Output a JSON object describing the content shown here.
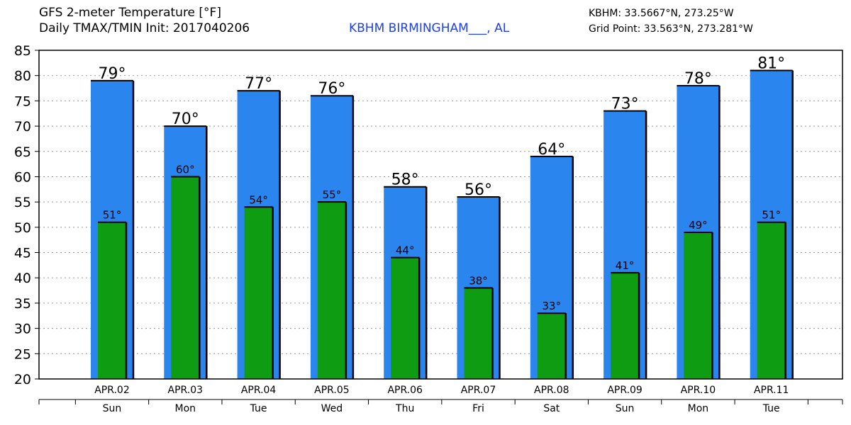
{
  "header": {
    "title_line1": "GFS 2-meter Temperature [°F]",
    "title_line2": "Daily TMAX/TMIN Init: 2017040206",
    "station": "KBHM BIRMINGHAM___, AL",
    "coord_station": "KBHM: 33.5667°N, 273.25°W",
    "coord_grid": "Grid Point: 33.563°N, 273.281°W"
  },
  "colors": {
    "tmax": "#2b85ef",
    "tmin": "#0e9c12",
    "station_text": "#1f3ff2",
    "bar_border": "#000000",
    "grid": "#999999"
  },
  "chart_data": {
    "type": "bar",
    "title": "GFS 2-meter Temperature [°F]",
    "categories": [
      "APR.02",
      "APR.03",
      "APR.04",
      "APR.05",
      "APR.06",
      "APR.07",
      "APR.08",
      "APR.09",
      "APR.10",
      "APR.11"
    ],
    "weekdays": [
      "Sun",
      "Mon",
      "Tue",
      "Wed",
      "Thu",
      "Fri",
      "Sat",
      "Sun",
      "Mon",
      "Tue"
    ],
    "series": [
      {
        "name": "TMAX",
        "values": [
          79,
          70,
          77,
          76,
          58,
          56,
          64,
          73,
          78,
          81
        ],
        "labels": [
          "79°",
          "70°",
          "77°",
          "76°",
          "58°",
          "56°",
          "64°",
          "73°",
          "78°",
          "81°"
        ]
      },
      {
        "name": "TMIN",
        "values": [
          51,
          60,
          54,
          55,
          44,
          38,
          33,
          41,
          49,
          51
        ],
        "labels": [
          "51°",
          "60°",
          "54°",
          "55°",
          "44°",
          "38°",
          "33°",
          "41°",
          "49°",
          "51°"
        ]
      }
    ],
    "ylim": [
      20,
      85
    ],
    "yticks": [
      "20",
      "25",
      "30",
      "35",
      "40",
      "45",
      "50",
      "55",
      "60",
      "65",
      "70",
      "75",
      "80",
      "85"
    ],
    "grid": "horizontal-dotted",
    "legend": "none"
  }
}
